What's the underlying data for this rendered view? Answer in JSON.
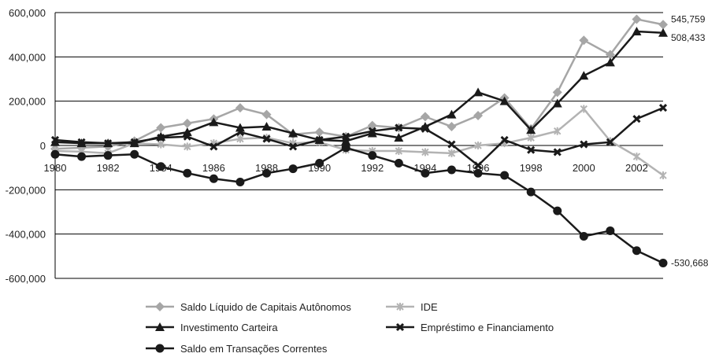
{
  "chart_data": {
    "type": "line",
    "title": "",
    "xlabel": "",
    "ylabel": "",
    "ylim": [
      -600000,
      600000
    ],
    "yticks": [
      600000,
      400000,
      200000,
      0,
      -200000,
      -400000,
      -600000
    ],
    "ytick_labels": [
      "600,000",
      "400,000",
      "200,000",
      "0",
      "-200,000",
      "-400,000",
      "-600,000"
    ],
    "xlim": [
      1980,
      2003
    ],
    "xticks": [
      1980,
      1982,
      1984,
      1986,
      1988,
      1990,
      1992,
      1994,
      1996,
      1998,
      2000,
      2002
    ],
    "xtick_labels": [
      "1980",
      "1982",
      "1984",
      "1986",
      "1988",
      "1990",
      "1992",
      "1994",
      "1996",
      "1998",
      "2000",
      "2002"
    ],
    "grid": "horizontal",
    "legend_position": "bottom",
    "x": [
      1980,
      1981,
      1982,
      1983,
      1984,
      1985,
      1986,
      1987,
      1988,
      1989,
      1990,
      1991,
      1992,
      1993,
      1994,
      1995,
      1996,
      1997,
      1998,
      1999,
      2000,
      2001,
      2002,
      2003
    ],
    "series": [
      {
        "name": "Saldo Líquido de Capitais Autônomos",
        "color": "#a6a6a6",
        "marker": "diamond",
        "values": [
          -15000,
          -10000,
          -5000,
          20000,
          80000,
          100000,
          120000,
          170000,
          140000,
          50000,
          60000,
          40000,
          90000,
          80000,
          130000,
          85000,
          135000,
          215000,
          75000,
          240000,
          475000,
          410000,
          570000,
          545759
        ]
      },
      {
        "name": "IDE",
        "color": "#b3b3b3",
        "marker": "x",
        "values": [
          -25000,
          -28000,
          -35000,
          10000,
          5000,
          -5000,
          10000,
          30000,
          35000,
          10000,
          15000,
          -20000,
          -25000,
          -25000,
          -30000,
          -35000,
          0,
          10000,
          35000,
          65000,
          165000,
          20000,
          -50000,
          -135000
        ]
      },
      {
        "name": "Investimento Carteira",
        "color": "#1a1a1a",
        "marker": "triangle",
        "values": [
          15000,
          10000,
          10000,
          10000,
          40000,
          60000,
          105000,
          80000,
          85000,
          55000,
          25000,
          20000,
          55000,
          35000,
          85000,
          140000,
          240000,
          200000,
          70000,
          190000,
          315000,
          375000,
          515000,
          508433
        ]
      },
      {
        "name": "Empréstimo e Financiamento",
        "color": "#1a1a1a",
        "marker": "cross",
        "values": [
          25000,
          15000,
          10000,
          15000,
          35000,
          40000,
          -5000,
          60000,
          30000,
          -5000,
          25000,
          40000,
          65000,
          80000,
          75000,
          5000,
          -90000,
          25000,
          -20000,
          -30000,
          5000,
          15000,
          120000,
          170000
        ]
      },
      {
        "name": "Saldo em Transações Correntes",
        "color": "#1a1a1a",
        "marker": "circle",
        "values": [
          -40000,
          -50000,
          -45000,
          -40000,
          -95000,
          -125000,
          -150000,
          -165000,
          -125000,
          -105000,
          -80000,
          -10000,
          -45000,
          -80000,
          -125000,
          -110000,
          -125000,
          -135000,
          -210000,
          -295000,
          -410000,
          -385000,
          -475000,
          -530668
        ]
      }
    ],
    "end_labels": [
      "545,759",
      "508,433",
      "-530,668"
    ]
  }
}
